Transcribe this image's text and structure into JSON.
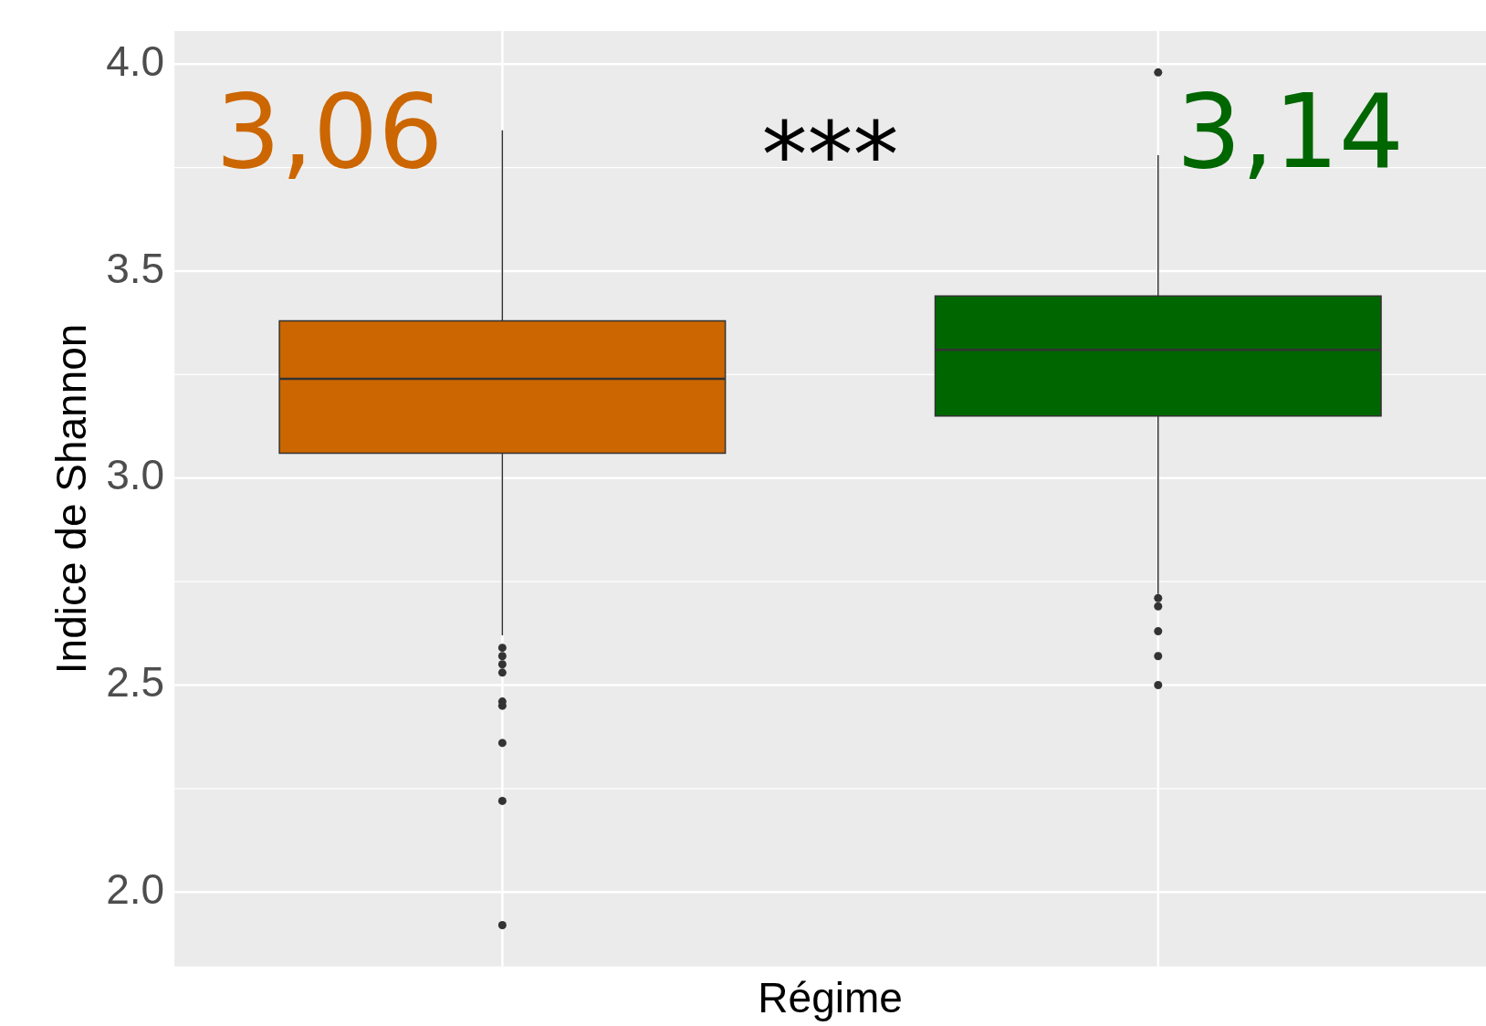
{
  "chart_data": {
    "type": "box",
    "xlabel": "Régime",
    "ylabel": "Indice de Shannon",
    "categories": [
      null,
      null
    ],
    "series": [
      {
        "color": "#cc6600",
        "boxes": [
          {
            "low": 2.62,
            "q1": 3.06,
            "median": 3.24,
            "q3": 3.38,
            "high": 3.84,
            "outliers": [
              2.59,
              2.57,
              2.55,
              2.53,
              2.46,
              2.45,
              2.36,
              2.22,
              1.92
            ]
          },
          null
        ]
      },
      {
        "color": "#006600",
        "boxes": [
          null,
          {
            "low": 2.72,
            "q1": 3.15,
            "median": 3.31,
            "q3": 3.44,
            "high": 3.78,
            "outliers": [
              3.98,
              2.71,
              2.69,
              2.63,
              2.57,
              2.5
            ]
          }
        ]
      }
    ],
    "ylim": [
      1.82,
      4.08
    ],
    "yticks": [
      {
        "value": 2.0,
        "label": "2.0"
      },
      {
        "value": 2.5,
        "label": "2.5"
      },
      {
        "value": 3.0,
        "label": "3.0"
      },
      {
        "value": 3.5,
        "label": "3.5"
      },
      {
        "value": 4.0,
        "label": "4.0"
      }
    ],
    "grid": true,
    "tick_labels": "y",
    "annotations": [
      "3,06",
      "***",
      "3,14"
    ]
  }
}
